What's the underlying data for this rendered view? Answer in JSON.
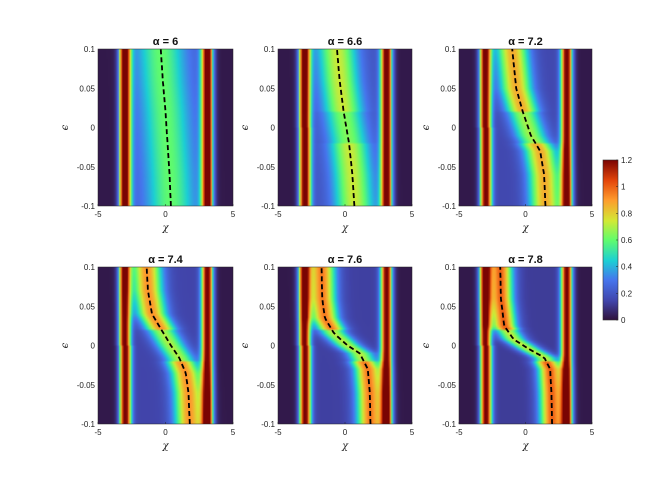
{
  "chart_data": {
    "type": "heatmap",
    "panels": [
      {
        "title": "α = 6",
        "param": "α",
        "alpha": 6,
        "curve": [
          [
            0.4,
            -0.1
          ],
          [
            0.3,
            -0.06
          ],
          [
            0.15,
            -0.02
          ],
          [
            0.0,
            0.02
          ],
          [
            -0.2,
            0.06
          ],
          [
            -0.35,
            0.1
          ]
        ]
      },
      {
        "title": "α = 6.6",
        "param": "α",
        "alpha": 6.6,
        "curve": [
          [
            0.7,
            -0.1
          ],
          [
            0.55,
            -0.06
          ],
          [
            0.3,
            -0.02
          ],
          [
            -0.1,
            0.02
          ],
          [
            -0.4,
            0.06
          ],
          [
            -0.6,
            0.1
          ]
        ]
      },
      {
        "title": "α = 7.2",
        "param": "α",
        "alpha": 7.2,
        "curve": [
          [
            1.5,
            -0.1
          ],
          [
            1.4,
            -0.06
          ],
          [
            1.1,
            -0.03
          ],
          [
            0.4,
            -0.01
          ],
          [
            -0.2,
            0.02
          ],
          [
            -0.7,
            0.05
          ],
          [
            -1.0,
            0.1
          ]
        ]
      },
      {
        "title": "α = 7.4",
        "param": "α",
        "alpha": 7.4,
        "curve": [
          [
            1.8,
            -0.1
          ],
          [
            1.7,
            -0.06
          ],
          [
            1.5,
            -0.035
          ],
          [
            1.0,
            -0.015
          ],
          [
            0.4,
            0.0
          ],
          [
            -0.3,
            0.02
          ],
          [
            -1.0,
            0.04
          ],
          [
            -1.3,
            0.07
          ],
          [
            -1.4,
            0.1
          ]
        ]
      },
      {
        "title": "α = 7.6",
        "param": "α",
        "alpha": 7.6,
        "curve": [
          [
            1.9,
            -0.1
          ],
          [
            1.85,
            -0.06
          ],
          [
            1.7,
            -0.03
          ],
          [
            1.1,
            -0.01
          ],
          [
            0.2,
            0.0
          ],
          [
            -0.8,
            0.015
          ],
          [
            -1.5,
            0.035
          ],
          [
            -1.7,
            0.06
          ],
          [
            -1.75,
            0.1
          ]
        ]
      },
      {
        "title": "α = 7.8",
        "param": "α",
        "alpha": 7.8,
        "curve": [
          [
            2.0,
            -0.1
          ],
          [
            1.95,
            -0.06
          ],
          [
            1.85,
            -0.03
          ],
          [
            1.4,
            -0.015
          ],
          [
            0.3,
            -0.005
          ],
          [
            -0.9,
            0.008
          ],
          [
            -1.6,
            0.025
          ],
          [
            -1.85,
            0.06
          ],
          [
            -1.9,
            0.1
          ]
        ]
      }
    ],
    "x_label": "χ",
    "y_label": "ϵ",
    "x_range": [
      -5,
      5
    ],
    "y_range": [
      -0.1,
      0.1
    ],
    "x_ticks": [
      "-5",
      "0",
      "5"
    ],
    "y_ticks": [
      "0.1",
      "0.05",
      "0",
      "-0.05",
      "-0.1"
    ],
    "colorbar": {
      "range": [
        0,
        1.2
      ],
      "ticks": [
        "1.2",
        "1",
        "0.8",
        "0.6",
        "0.4",
        "0.2",
        "0"
      ],
      "colormap": "turbo"
    },
    "dashed_curve_color": "#000000"
  }
}
